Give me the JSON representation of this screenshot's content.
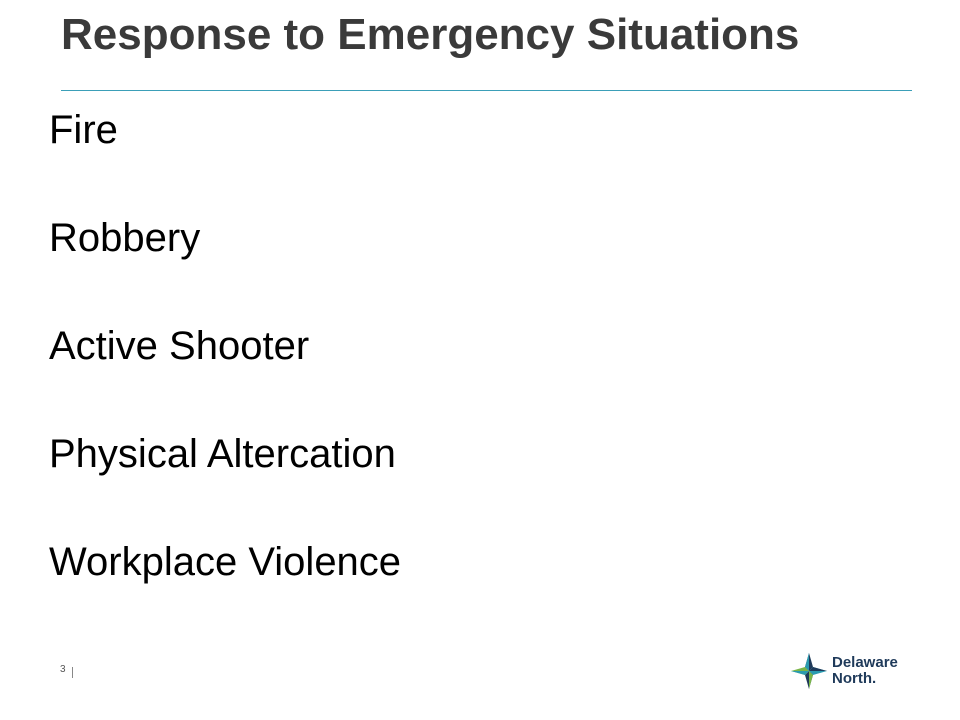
{
  "slide": {
    "title": "Response to Emergency Situations",
    "items": [
      "Fire",
      "Robbery",
      "Active Shooter",
      "Physical Altercation",
      "Workplace Violence"
    ],
    "page_number": "3"
  },
  "logo": {
    "line1": "Delaware",
    "line2": "North."
  },
  "colors": {
    "title": "#3a3a3a",
    "rule": "#3b9fb8",
    "logo_navy": "#1f3a5a",
    "logo_teal": "#2a9bb0",
    "logo_green": "#7ab648"
  }
}
